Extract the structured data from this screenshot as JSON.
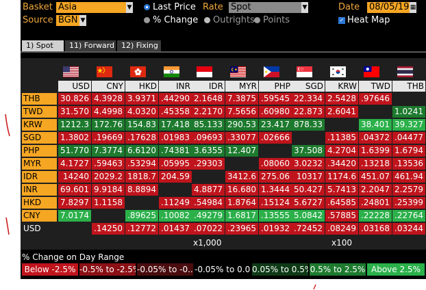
{
  "header": {
    "basket_label": "Basket",
    "basket_value": "Asia",
    "source_label": "Source",
    "source_value": "BGN",
    "price_options": [
      {
        "label": "Last Price",
        "selected": true
      },
      {
        "label": "% Change",
        "selected": false
      }
    ],
    "rate_label": "Rate",
    "rate_value": "Spot",
    "rate_options": [
      {
        "label": "Outrights",
        "selected": true
      },
      {
        "label": "Points",
        "selected": false
      }
    ],
    "date_label": "Date",
    "date_value": "08/05/19",
    "heatmap_label": "Heat Map",
    "heatmap_checked": true
  },
  "tabs": [
    {
      "label": "1) Spot",
      "active": true
    },
    {
      "label": "11) Forward",
      "active": false
    },
    {
      "label": "12) Fixing",
      "active": false
    }
  ],
  "columns": [
    "USD",
    "CNY",
    "HKD",
    "INR",
    "IDR",
    "MYR",
    "PHP",
    "SGD",
    "KRW",
    "TWD",
    "THB"
  ],
  "flags": [
    "us-flag-icon",
    "china-flag-icon",
    "hong-kong-flag-icon",
    "india-flag-icon",
    "indonesia-flag-icon",
    "malaysia-flag-icon",
    "philippines-flag-icon",
    "singapore-flag-icon",
    "south-korea-flag-icon",
    "taiwan-flag-icon",
    "thailand-flag-icon"
  ],
  "colors": {
    "red_strong": "#c0141c",
    "red_mid": "#8a1015",
    "red_dark": "#4a0c0e",
    "green_dark": "#0e3a16",
    "green_mid": "#1d7a2e",
    "green_strong": "#2bb04a",
    "neutral": "#000000",
    "orange": "#f5a623"
  },
  "rows": [
    {
      "ccy": "THB",
      "cells": [
        [
          "30.826",
          "rs"
        ],
        [
          "4.3928",
          "rs"
        ],
        [
          "3.9371",
          "rs"
        ],
        [
          ".44290",
          "rs"
        ],
        [
          "2.1648",
          "rs"
        ],
        [
          "7.3875",
          "rs"
        ],
        [
          ".59545",
          "rs"
        ],
        [
          "22.334",
          "rs"
        ],
        [
          "2.5428",
          "rs"
        ],
        [
          ".97646",
          "rs"
        ],
        [
          "",
          "x"
        ]
      ]
    },
    {
      "ccy": "TWD",
      "cells": [
        [
          "31.570",
          "rs"
        ],
        [
          "4.4998",
          "rs"
        ],
        [
          "4.0320",
          "rs"
        ],
        [
          ".45358",
          "rs"
        ],
        [
          "2.2170",
          "rs"
        ],
        [
          "7.5656",
          "rs"
        ],
        [
          ".60980",
          "rs"
        ],
        [
          "22.873",
          "rs"
        ],
        [
          "2.6041",
          "rs"
        ],
        [
          "",
          "x"
        ],
        [
          "1.0241",
          "gm"
        ]
      ]
    },
    {
      "ccy": "KRW",
      "cells": [
        [
          "1212.3",
          "gm"
        ],
        [
          "172.76",
          "gm"
        ],
        [
          "154.83",
          "gm"
        ],
        [
          "17.418",
          "gm"
        ],
        [
          "85.133",
          "gm"
        ],
        [
          "290.53",
          "gm"
        ],
        [
          "23.417",
          "gm"
        ],
        [
          "878.33",
          "gm"
        ],
        [
          "",
          "x"
        ],
        [
          "38.401",
          "gs"
        ],
        [
          "39.327",
          "gs"
        ]
      ]
    },
    {
      "ccy": "SGD",
      "cells": [
        [
          "1.3802",
          "rs"
        ],
        [
          ".19669",
          "rs"
        ],
        [
          ".17628",
          "rs"
        ],
        [
          ".01983",
          "rs"
        ],
        [
          ".09693",
          "rs"
        ],
        [
          ".33077",
          "rs"
        ],
        [
          ".02666",
          "rs"
        ],
        [
          "",
          "x"
        ],
        [
          ".11385",
          "rs"
        ],
        [
          ".04372",
          "rs"
        ],
        [
          ".04477",
          "rs"
        ]
      ]
    },
    {
      "ccy": "PHP",
      "cells": [
        [
          "51.770",
          "gm"
        ],
        [
          "7.3774",
          "gm"
        ],
        [
          "6.6120",
          "gm"
        ],
        [
          ".74381",
          "gm"
        ],
        [
          "3.6355",
          "gm"
        ],
        [
          "12.407",
          "gm"
        ],
        [
          "",
          "x"
        ],
        [
          "37.508",
          "gm"
        ],
        [
          "4.2704",
          "rs"
        ],
        [
          "1.6399",
          "rs"
        ],
        [
          "1.6794",
          "rs"
        ]
      ]
    },
    {
      "ccy": "MYR",
      "cells": [
        [
          "4.1727",
          "rs"
        ],
        [
          ".59463",
          "rs"
        ],
        [
          ".53294",
          "rs"
        ],
        [
          ".05995",
          "rs"
        ],
        [
          ".29303",
          "rs"
        ],
        [
          "",
          "x"
        ],
        [
          ".08060",
          "rs"
        ],
        [
          "3.0232",
          "rs"
        ],
        [
          ".34420",
          "rs"
        ],
        [
          ".13218",
          "rs"
        ],
        [
          ".13536",
          "rs"
        ]
      ]
    },
    {
      "ccy": "IDR",
      "cells": [
        [
          "14240",
          "rs"
        ],
        [
          "2029.2",
          "rs"
        ],
        [
          "1818.7",
          "rs"
        ],
        [
          "204.59",
          "rs"
        ],
        [
          "",
          "x"
        ],
        [
          "3412.6",
          "rs"
        ],
        [
          "275.06",
          "rs"
        ],
        [
          "10317",
          "rs"
        ],
        [
          "1174.6",
          "rs"
        ],
        [
          "451.07",
          "rs"
        ],
        [
          "461.94",
          "rs"
        ]
      ]
    },
    {
      "ccy": "INR",
      "cells": [
        [
          "69.601",
          "rs"
        ],
        [
          "9.9184",
          "rs"
        ],
        [
          "8.8894",
          "rs"
        ],
        [
          "",
          "x"
        ],
        [
          "4.8877",
          "rs"
        ],
        [
          "16.680",
          "rs"
        ],
        [
          "1.3444",
          "rs"
        ],
        [
          "50.427",
          "rs"
        ],
        [
          "5.7413",
          "rs"
        ],
        [
          "2.2047",
          "rs"
        ],
        [
          "2.2579",
          "rs"
        ]
      ]
    },
    {
      "ccy": "HKD",
      "cells": [
        [
          "7.8297",
          "rs"
        ],
        [
          "1.1158",
          "rs"
        ],
        [
          "",
          "x"
        ],
        [
          ".11249",
          "rs"
        ],
        [
          ".54984",
          "rs"
        ],
        [
          "1.8764",
          "rs"
        ],
        [
          ".15124",
          "rs"
        ],
        [
          "5.6727",
          "rs"
        ],
        [
          ".64585",
          "rs"
        ],
        [
          ".24801",
          "rs"
        ],
        [
          ".25399",
          "rs"
        ]
      ]
    },
    {
      "ccy": "CNY",
      "cells": [
        [
          "7.0174",
          "gs"
        ],
        [
          "",
          "x"
        ],
        [
          ".89625",
          "gs"
        ],
        [
          ".10082",
          "gs"
        ],
        [
          ".49279",
          "gs"
        ],
        [
          "1.6817",
          "gs"
        ],
        [
          ".13555",
          "gs"
        ],
        [
          "5.0842",
          "gs"
        ],
        [
          ".57885",
          "rs"
        ],
        [
          ".22228",
          "gs"
        ],
        [
          ".22764",
          "gs"
        ]
      ]
    },
    {
      "ccy": "USD",
      "cells": [
        [
          "",
          "x"
        ],
        [
          ".14250",
          "rs"
        ],
        [
          ".12772",
          "rs"
        ],
        [
          ".01437",
          "rs"
        ],
        [
          ".07022",
          "rs"
        ],
        [
          ".23965",
          "rs"
        ],
        [
          ".01932",
          "rs"
        ],
        [
          ".72452",
          "rs"
        ],
        [
          ".08249",
          "rs"
        ],
        [
          ".03168",
          "rs"
        ],
        [
          ".03244",
          "rs"
        ]
      ]
    }
  ],
  "scale_notes": [
    {
      "col": "IDR",
      "text": "x1,000"
    },
    {
      "col": "KRW",
      "text": "x100"
    }
  ],
  "legend": {
    "title": "% Change on Day Range",
    "ranges": [
      {
        "label": "Below -2.5%",
        "color": "#c0141c"
      },
      {
        "label": "-0.5% to -2.5%",
        "color": "#8a1015"
      },
      {
        "label": "-0.05% to -0...",
        "color": "#4a0c0e"
      },
      {
        "label": "-0.05% to 0.0...",
        "color": "#000000"
      },
      {
        "label": "0.05% to 0.5%",
        "color": "#0e3a16"
      },
      {
        "label": "0.5% to 2.5%",
        "color": "#1d7a2e"
      },
      {
        "label": "Above 2.5%",
        "color": "#2bb04a"
      }
    ]
  }
}
